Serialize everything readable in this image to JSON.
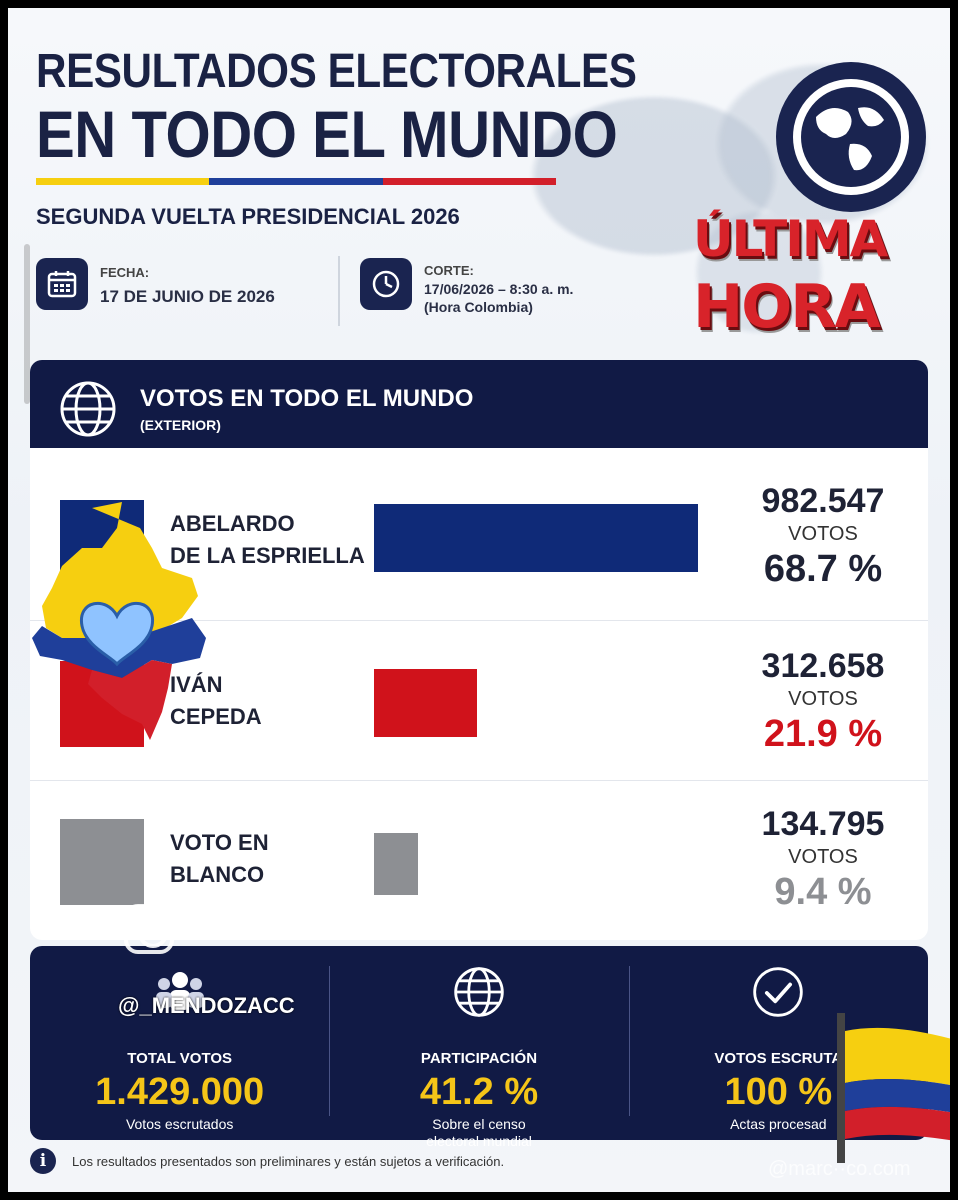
{
  "header": {
    "title_line1": "RESULTADOS ELECTORALES",
    "title_line2": "EN TODO EL MUNDO",
    "subtitle": "SEGUNDA VUELTA PRESIDENCIAL 2026",
    "fecha_label": "FECHA:",
    "fecha_value": "17 DE JUNIO DE 2026",
    "corte_label": "CORTE:",
    "corte_value": "17/06/2026 – 8:30 a. m.",
    "corte_note": "(Hora Colombia)",
    "badge_line1": "ÚLTIMA",
    "badge_line2": "HORA"
  },
  "colors": {
    "navy": "#111a45",
    "blue_bar": "#0f2a78",
    "red_bar": "#d0121b",
    "gray_bar": "#8d8f93",
    "gold": "#f5c518",
    "flag_yellow": "#f6cf10",
    "flag_blue": "#1f3f9a",
    "flag_red": "#d21f2a"
  },
  "panel": {
    "title": "VOTOS EN TODO EL MUNDO",
    "subtitle": "(EXTERIOR)"
  },
  "chart_data": {
    "type": "bar",
    "orientation": "horizontal",
    "categories": [
      "ABELARDO DE LA ESPRIELLA",
      "IVÁN CEPEDA",
      "VOTO EN BLANCO"
    ],
    "category_lines": [
      [
        "ABELARDO",
        "DE LA ESPRIELLA"
      ],
      [
        "IVÁN",
        "CEPEDA"
      ],
      [
        "VOTO EN",
        "BLANCO"
      ]
    ],
    "values": [
      982547,
      312658,
      134795
    ],
    "value_labels": [
      "982.547",
      "312.658",
      "134.795"
    ],
    "percent_labels": [
      "68.7 %",
      "21.9 %",
      "9.4 %"
    ],
    "percents": [
      68.7,
      21.9,
      9.4
    ],
    "unit_label": "VOTOS",
    "colors": [
      "#0f2a78",
      "#d0121b",
      "#8d8f93"
    ],
    "percent_colors": [
      "#1e2235",
      "#d0121b",
      "#8d8f93"
    ]
  },
  "summary": {
    "total_label": "TOTAL VOTOS",
    "total_value": "1.429.000",
    "total_note": "Votos escrutados",
    "part_label": "PARTICIPACIÓN",
    "part_value": "41.2 %",
    "part_note_1": "Sobre el censo",
    "part_note_2": "electoral mundial",
    "escr_label": "VOTOS ESCRUTA",
    "escr_value": "100 %",
    "escr_note": "Actas procesad"
  },
  "disclaimer": "Los resultados presentados son preliminares y están sujetos a verificación.",
  "overlay": {
    "handle": "@_MENDOZACC",
    "watermark": "@marc··co.com"
  }
}
